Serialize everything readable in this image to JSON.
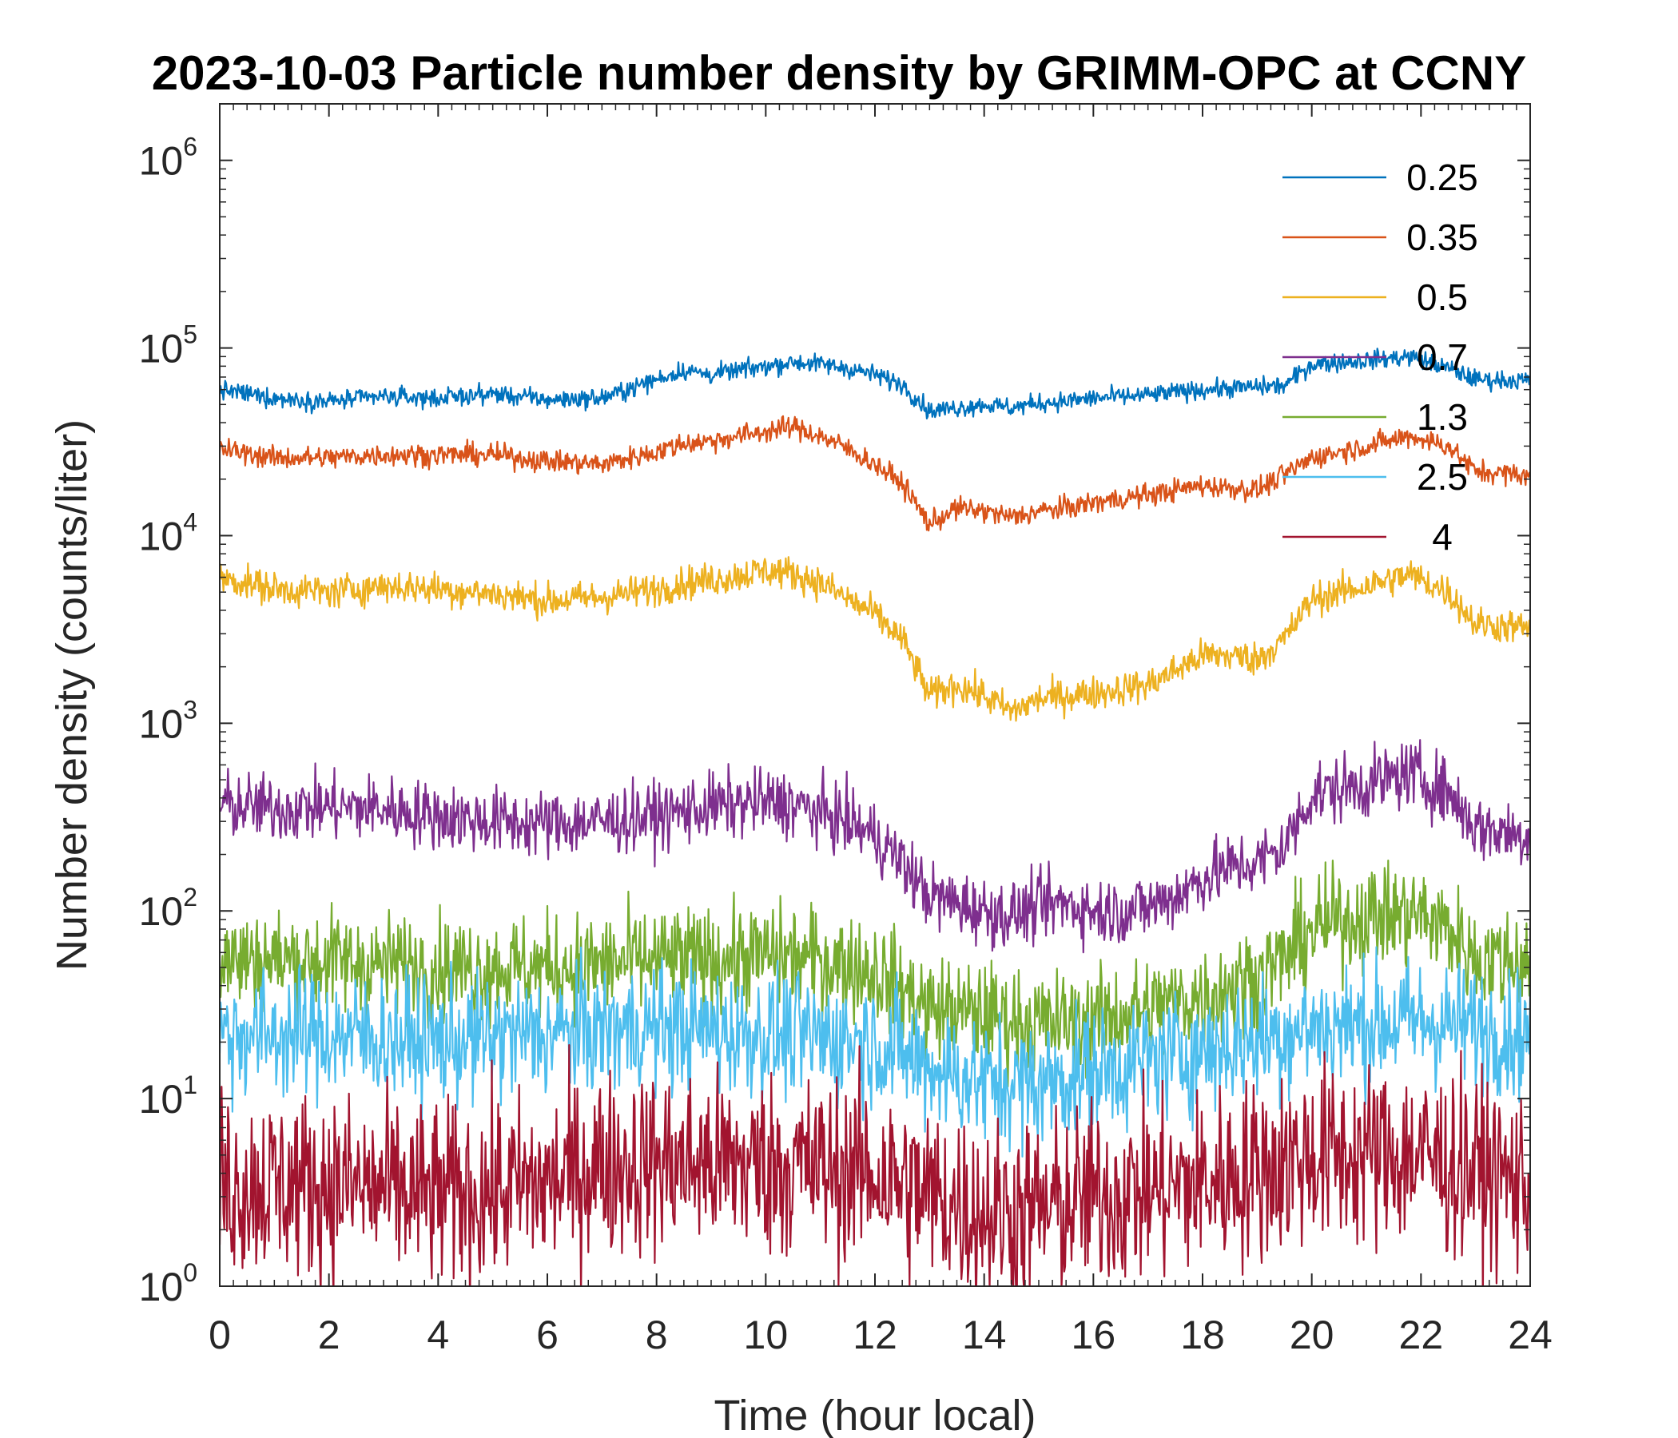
{
  "chart_data": {
    "type": "line",
    "title": "2023-10-03 Particle number density by GRIMM-OPC at CCNY",
    "xlabel": "Time (hour local)",
    "ylabel": "Number density (counts/liter)",
    "xlim": [
      0,
      24
    ],
    "ylim": [
      1,
      2000000
    ],
    "yscale": "log",
    "xticks": [
      0,
      2,
      4,
      6,
      8,
      10,
      12,
      14,
      16,
      18,
      20,
      22,
      24
    ],
    "xtick_labels": [
      "0",
      "2",
      "4",
      "6",
      "8",
      "10",
      "12",
      "14",
      "16",
      "18",
      "20",
      "22",
      "24"
    ],
    "yticks": [
      1,
      10,
      100,
      1000,
      10000,
      100000,
      1000000
    ],
    "ytick_labels": [
      {
        "base": "10",
        "exp": "0"
      },
      {
        "base": "10",
        "exp": "1"
      },
      {
        "base": "10",
        "exp": "2"
      },
      {
        "base": "10",
        "exp": "3"
      },
      {
        "base": "10",
        "exp": "4"
      },
      {
        "base": "10",
        "exp": "5"
      },
      {
        "base": "10",
        "exp": "6"
      }
    ],
    "legend_position": "top-right",
    "series": [
      {
        "name": "0.25",
        "color": "#0072BD",
        "noise": 0.025,
        "x": [
          0,
          1,
          2,
          3,
          4,
          5,
          6,
          7,
          8,
          8.5,
          9,
          10,
          10.5,
          11,
          11.5,
          12,
          12.5,
          13,
          13.5,
          14,
          14.5,
          15,
          15.5,
          16,
          17,
          18,
          19,
          19.5,
          20,
          21,
          21.8,
          22.5,
          23,
          24
        ],
        "y": [
          60000,
          54000,
          52000,
          55000,
          54000,
          57000,
          53000,
          54000,
          68000,
          76000,
          72000,
          80000,
          84000,
          82000,
          78000,
          72000,
          64000,
          46000,
          48000,
          50000,
          48000,
          51000,
          52000,
          54000,
          56000,
          60000,
          62000,
          63000,
          82000,
          86000,
          90000,
          78000,
          68000,
          67000
        ]
      },
      {
        "name": "0.35",
        "color": "#D95319",
        "noise": 0.03,
        "x": [
          0,
          1,
          2,
          3,
          4,
          5,
          6,
          7,
          8,
          8.5,
          9,
          10,
          10.5,
          11,
          11.5,
          12,
          12.5,
          13,
          13.5,
          14,
          14.5,
          15,
          15.5,
          16,
          17,
          18,
          19,
          19.5,
          20,
          21,
          21.8,
          22.5,
          23,
          24
        ],
        "y": [
          29000,
          26000,
          26000,
          27000,
          27000,
          27000,
          25000,
          24000,
          28000,
          31000,
          32000,
          36000,
          38000,
          34000,
          29000,
          24000,
          19000,
          11500,
          14000,
          13500,
          12500,
          13500,
          14000,
          15000,
          16500,
          18500,
          17500,
          21000,
          26000,
          30000,
          34000,
          30000,
          22000,
          21000
        ]
      },
      {
        "name": "0.5",
        "color": "#EDB120",
        "noise": 0.045,
        "x": [
          0,
          1,
          2,
          3,
          4,
          5,
          6,
          7,
          8,
          8.5,
          9,
          10,
          10.5,
          11,
          11.5,
          12,
          12.5,
          13,
          13.5,
          14,
          14.5,
          15,
          15.5,
          16,
          17,
          18,
          18.5,
          19,
          19.5,
          20,
          21,
          21.8,
          22.5,
          23,
          24
        ],
        "y": [
          6000,
          5200,
          5000,
          5400,
          5200,
          4900,
          4500,
          4700,
          5200,
          5600,
          5800,
          6500,
          6300,
          5600,
          4600,
          3800,
          2800,
          1400,
          1600,
          1400,
          1150,
          1350,
          1400,
          1450,
          1600,
          2300,
          2300,
          2200,
          2800,
          4600,
          5400,
          6200,
          5000,
          3400,
          3200
        ]
      },
      {
        "name": "0.7",
        "color": "#7E2F8E",
        "noise": 0.09,
        "x": [
          0,
          1,
          2,
          3,
          4,
          5,
          6,
          7,
          8,
          9,
          10,
          10.5,
          11,
          11.5,
          12,
          12.5,
          13,
          13.5,
          14,
          14.5,
          15,
          15.5,
          16,
          16.5,
          17,
          17.5,
          18,
          18.5,
          19,
          19.5,
          20,
          21,
          21.8,
          22.5,
          23,
          24
        ],
        "y": [
          370,
          350,
          360,
          350,
          320,
          300,
          290,
          300,
          320,
          360,
          380,
          370,
          330,
          300,
          250,
          180,
          120,
          110,
          100,
          95,
          105,
          110,
          100,
          100,
          105,
          120,
          150,
          170,
          180,
          220,
          420,
          470,
          540,
          430,
          280,
          250
        ]
      },
      {
        "name": "1.3",
        "color": "#77AC30",
        "noise": 0.14,
        "x": [
          0,
          1,
          2,
          3,
          4,
          5,
          6,
          7,
          8,
          9,
          10,
          11,
          12,
          12.5,
          13,
          14,
          15,
          16,
          17,
          18,
          19,
          19.5,
          20,
          21,
          22,
          22.5,
          23,
          24
        ],
        "y": [
          55,
          55,
          54,
          52,
          50,
          50,
          50,
          52,
          55,
          55,
          58,
          55,
          48,
          38,
          30,
          28,
          25,
          26,
          30,
          35,
          45,
          55,
          80,
          95,
          95,
          80,
          55,
          55
        ]
      },
      {
        "name": "2.5",
        "color": "#4DBEEE",
        "noise": 0.17,
        "x": [
          0,
          2,
          4,
          6,
          8,
          10,
          12,
          13,
          14,
          15,
          16,
          18,
          20,
          22,
          24
        ],
        "y": [
          22,
          22,
          20,
          22,
          24,
          22,
          20,
          15,
          12,
          12,
          14,
          18,
          24,
          26,
          22
        ]
      },
      {
        "name": "4",
        "color": "#A2142F",
        "noise": 0.25,
        "x": [
          0,
          2,
          4,
          6,
          7,
          8,
          10,
          12,
          13,
          14,
          15,
          16,
          18,
          20,
          22,
          24
        ],
        "y": [
          3.5,
          3.5,
          3,
          3.5,
          4.5,
          4.5,
          4.5,
          4,
          3,
          2.5,
          2.5,
          3,
          3.5,
          5,
          5,
          3.5
        ]
      }
    ]
  }
}
